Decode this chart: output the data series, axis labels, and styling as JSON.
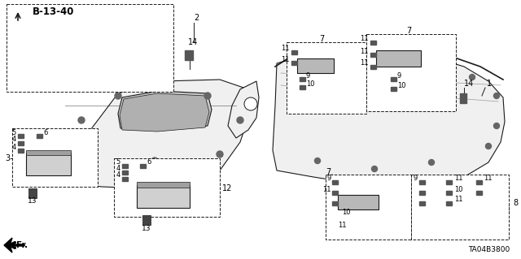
{
  "bg_color": "#ffffff",
  "fig_width": 6.4,
  "fig_height": 3.19,
  "dpi": 100,
  "diagram_code": "B-13-40",
  "part_number": "TA04B3800",
  "line_color": "#1a1a1a",
  "fill_color": "#f0f0f0",
  "dark_fill": "#c8c8c8"
}
